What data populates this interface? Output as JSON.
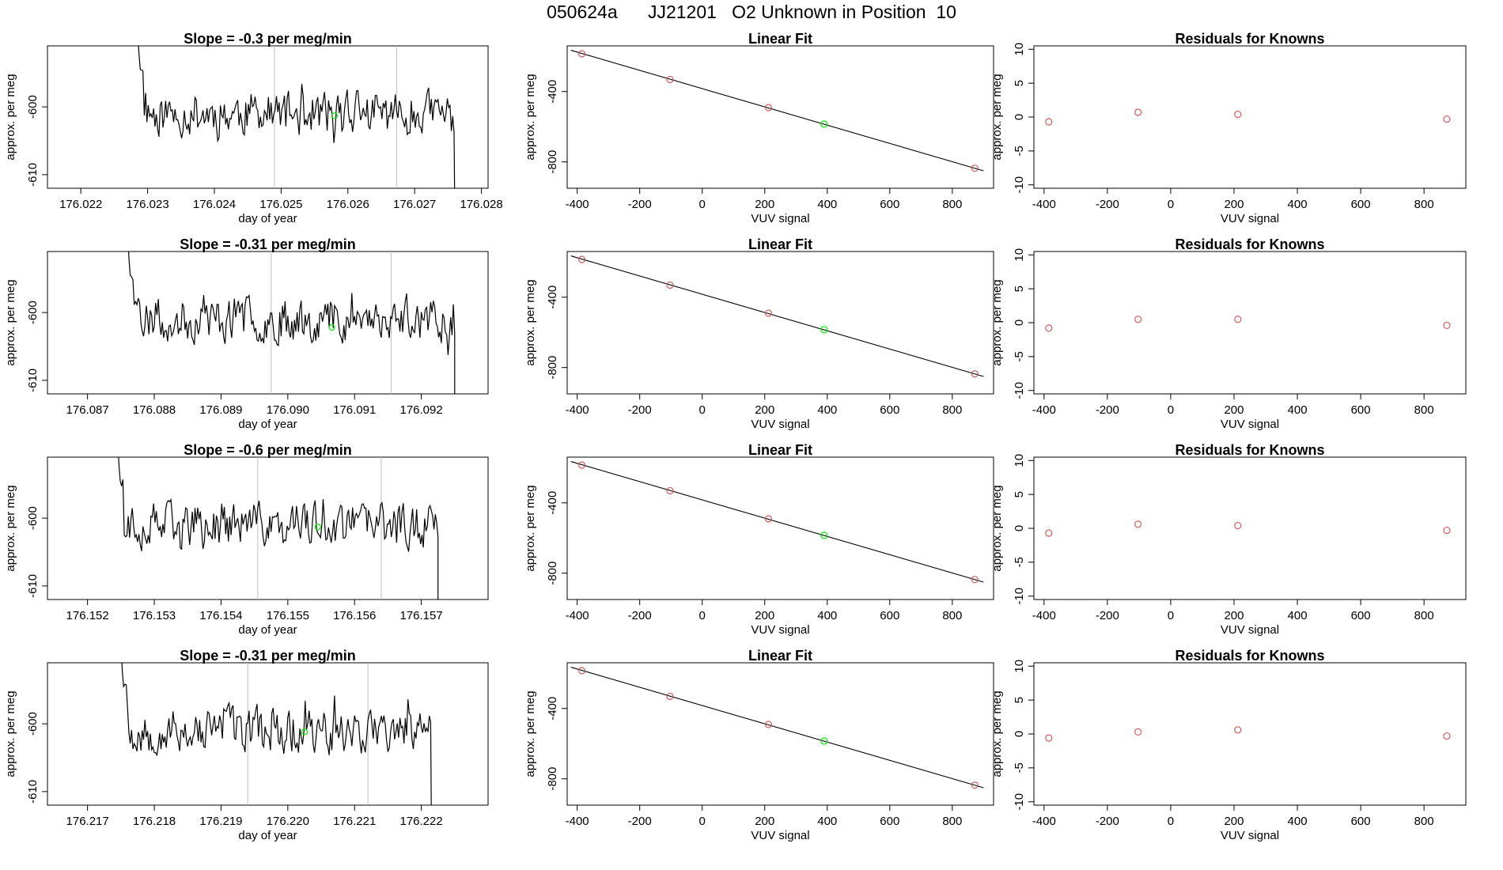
{
  "page": {
    "title": "050624a      JJ21201   O2 Unknown in Position  10"
  },
  "colors": {
    "line": "#000000",
    "known_point": "#cd5c5c",
    "unknown_point": "#00ee00",
    "vline": "#bebebe"
  },
  "chart_data": [
    {
      "type": "line",
      "row": 1,
      "panel": "timeseries",
      "title": "Slope =  -0.3  per meg/min",
      "xlabel": "day of year",
      "ylabel": "approx. per meg",
      "xlim": [
        176.0215,
        176.0281
      ],
      "ylim": [
        -612,
        -591
      ],
      "xticks": [
        "176.022",
        "176.023",
        "176.024",
        "176.025",
        "176.026",
        "176.027",
        "176.028"
      ],
      "yticks": [
        "-600",
        "-610"
      ],
      "start": 176.02285,
      "end": 176.0276,
      "step": 2e-05,
      "seed": 11,
      "vlines": [
        176.0249,
        176.02673
      ],
      "unknown_point": {
        "x": 176.0258,
        "y": -601.3
      }
    },
    {
      "type": "scatter",
      "row": 1,
      "panel": "fit",
      "title": "Linear Fit",
      "xlabel": "VUV signal",
      "ylabel": "approx. per meg",
      "xlim": [
        -432,
        932
      ],
      "ylim": [
        -950,
        -140
      ],
      "xticks": [
        "-400",
        "-200",
        "0",
        "200",
        "400",
        "600",
        "800"
      ],
      "yticks": [
        "-400",
        "-800"
      ],
      "known": [
        {
          "x": -385,
          "y": -185
        },
        {
          "x": -103,
          "y": -331
        },
        {
          "x": 212,
          "y": -491
        },
        {
          "x": 872,
          "y": -836
        }
      ],
      "unknown": {
        "x": 390,
        "y": -585
      },
      "fit_line": {
        "x": [
          -420,
          900
        ],
        "y": [
          -165,
          -851
        ]
      }
    },
    {
      "type": "scatter",
      "row": 1,
      "panel": "residuals",
      "title": "Residuals for Knowns",
      "xlabel": "VUV signal",
      "ylabel": "approx. per meg",
      "xlim": [
        -432,
        932
      ],
      "ylim": [
        -10.5,
        10.5
      ],
      "xticks": [
        "-400",
        "-200",
        "0",
        "200",
        "400",
        "600",
        "800"
      ],
      "yticks": [
        "10",
        "5",
        "0",
        "-5",
        "-10"
      ],
      "points": [
        {
          "x": -385,
          "y": -0.7
        },
        {
          "x": -103,
          "y": 0.7
        },
        {
          "x": 212,
          "y": 0.4
        },
        {
          "x": 872,
          "y": -0.3
        }
      ]
    },
    {
      "type": "line",
      "row": 2,
      "panel": "timeseries",
      "title": "Slope =  -0.31  per meg/min",
      "xlabel": "day of year",
      "ylabel": "approx. per meg",
      "xlim": [
        176.0864,
        176.093
      ],
      "ylim": [
        -612,
        -591
      ],
      "xticks": [
        "176.087",
        "176.088",
        "176.089",
        "176.090",
        "176.091",
        "176.092"
      ],
      "yticks": [
        "-600",
        "-610"
      ],
      "start": 176.0876,
      "end": 176.0925,
      "step": 2e-05,
      "seed": 23,
      "vlines": [
        176.08975,
        176.09155
      ],
      "unknown_point": {
        "x": 176.09066,
        "y": -602.2
      }
    },
    {
      "type": "scatter",
      "row": 2,
      "panel": "fit",
      "title": "Linear Fit",
      "xlabel": "VUV signal",
      "ylabel": "approx. per meg",
      "xlim": [
        -432,
        932
      ],
      "ylim": [
        -950,
        -140
      ],
      "xticks": [
        "-400",
        "-200",
        "0",
        "200",
        "400",
        "600",
        "800"
      ],
      "yticks": [
        "-400",
        "-800"
      ],
      "known": [
        {
          "x": -385,
          "y": -185
        },
        {
          "x": -103,
          "y": -331
        },
        {
          "x": 212,
          "y": -491
        },
        {
          "x": 872,
          "y": -836
        }
      ],
      "unknown": {
        "x": 390,
        "y": -585
      },
      "fit_line": {
        "x": [
          -420,
          900
        ],
        "y": [
          -165,
          -851
        ]
      }
    },
    {
      "type": "scatter",
      "row": 2,
      "panel": "residuals",
      "title": "Residuals for Knowns",
      "xlabel": "VUV signal",
      "ylabel": "approx. per meg",
      "xlim": [
        -432,
        932
      ],
      "ylim": [
        -10.5,
        10.5
      ],
      "xticks": [
        "-400",
        "-200",
        "0",
        "200",
        "400",
        "600",
        "800"
      ],
      "yticks": [
        "10",
        "5",
        "0",
        "-5",
        "-10"
      ],
      "points": [
        {
          "x": -385,
          "y": -0.8
        },
        {
          "x": -103,
          "y": 0.5
        },
        {
          "x": 212,
          "y": 0.5
        },
        {
          "x": 872,
          "y": -0.4
        }
      ]
    },
    {
      "type": "line",
      "row": 3,
      "panel": "timeseries",
      "title": "Slope =  -0.6  per meg/min",
      "xlabel": "day of year",
      "ylabel": "approx. per meg",
      "xlim": [
        176.1514,
        176.158
      ],
      "ylim": [
        -612,
        -591
      ],
      "xticks": [
        "176.152",
        "176.153",
        "176.154",
        "176.155",
        "176.156",
        "176.157"
      ],
      "yticks": [
        "-600",
        "-610"
      ],
      "start": 176.15245,
      "end": 176.15725,
      "step": 2e-05,
      "seed": 37,
      "vlines": [
        176.15455,
        176.1564
      ],
      "unknown_point": {
        "x": 176.15545,
        "y": -601.3
      }
    },
    {
      "type": "scatter",
      "row": 3,
      "panel": "fit",
      "title": "Linear Fit",
      "xlabel": "VUV signal",
      "ylabel": "approx. per meg",
      "xlim": [
        -432,
        932
      ],
      "ylim": [
        -950,
        -140
      ],
      "xticks": [
        "-400",
        "-200",
        "0",
        "200",
        "400",
        "600",
        "800"
      ],
      "yticks": [
        "-400",
        "-800"
      ],
      "known": [
        {
          "x": -385,
          "y": -185
        },
        {
          "x": -103,
          "y": -331
        },
        {
          "x": 212,
          "y": -491
        },
        {
          "x": 872,
          "y": -836
        }
      ],
      "unknown": {
        "x": 390,
        "y": -585
      },
      "fit_line": {
        "x": [
          -420,
          900
        ],
        "y": [
          -165,
          -851
        ]
      }
    },
    {
      "type": "scatter",
      "row": 3,
      "panel": "residuals",
      "title": "Residuals for Knowns",
      "xlabel": "VUV signal",
      "ylabel": "approx. per meg",
      "xlim": [
        -432,
        932
      ],
      "ylim": [
        -10.5,
        10.5
      ],
      "xticks": [
        "-400",
        "-200",
        "0",
        "200",
        "400",
        "600",
        "800"
      ],
      "yticks": [
        "10",
        "5",
        "0",
        "-5",
        "-10"
      ],
      "points": [
        {
          "x": -385,
          "y": -0.7
        },
        {
          "x": -103,
          "y": 0.6
        },
        {
          "x": 212,
          "y": 0.4
        },
        {
          "x": 872,
          "y": -0.3
        }
      ]
    },
    {
      "type": "line",
      "row": 4,
      "panel": "timeseries",
      "title": "Slope =  -0.31  per meg/min",
      "xlabel": "day of year",
      "ylabel": "approx. per meg",
      "xlim": [
        176.2164,
        176.223
      ],
      "ylim": [
        -612,
        -591
      ],
      "xticks": [
        "176.217",
        "176.218",
        "176.219",
        "176.220",
        "176.221",
        "176.222"
      ],
      "yticks": [
        "-600",
        "-610"
      ],
      "start": 176.2175,
      "end": 176.22215,
      "step": 2e-05,
      "seed": 53,
      "vlines": [
        176.2194,
        176.2212
      ],
      "unknown_point": {
        "x": 176.22025,
        "y": -601.2
      }
    },
    {
      "type": "scatter",
      "row": 4,
      "panel": "fit",
      "title": "Linear Fit",
      "xlabel": "VUV signal",
      "ylabel": "approx. per meg",
      "xlim": [
        -432,
        932
      ],
      "ylim": [
        -950,
        -140
      ],
      "xticks": [
        "-400",
        "-200",
        "0",
        "200",
        "400",
        "600",
        "800"
      ],
      "yticks": [
        "-400",
        "-800"
      ],
      "known": [
        {
          "x": -385,
          "y": -185
        },
        {
          "x": -103,
          "y": -331
        },
        {
          "x": 212,
          "y": -491
        },
        {
          "x": 872,
          "y": -836
        }
      ],
      "unknown": {
        "x": 390,
        "y": -585
      },
      "fit_line": {
        "x": [
          -420,
          900
        ],
        "y": [
          -165,
          -851
        ]
      }
    },
    {
      "type": "scatter",
      "row": 4,
      "panel": "residuals",
      "title": "Residuals for Knowns",
      "xlabel": "VUV signal",
      "ylabel": "approx. per meg",
      "xlim": [
        -432,
        932
      ],
      "ylim": [
        -10.5,
        10.5
      ],
      "xticks": [
        "-400",
        "-200",
        "0",
        "200",
        "400",
        "600",
        "800"
      ],
      "yticks": [
        "10",
        "5",
        "0",
        "-5",
        "-10"
      ],
      "points": [
        {
          "x": -385,
          "y": -0.6
        },
        {
          "x": -103,
          "y": 0.3
        },
        {
          "x": 212,
          "y": 0.6
        },
        {
          "x": 872,
          "y": -0.3
        }
      ]
    }
  ]
}
